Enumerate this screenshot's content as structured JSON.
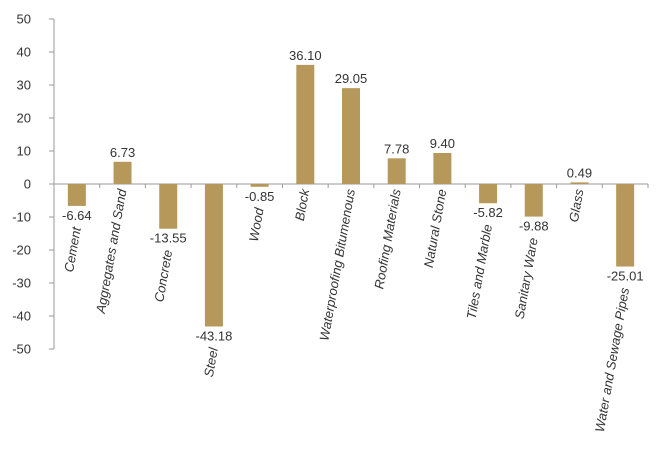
{
  "chart_data": {
    "type": "bar",
    "title": "",
    "xlabel": "",
    "ylabel": "",
    "ylim": [
      -50,
      50
    ],
    "yticks": [
      50,
      40,
      30,
      20,
      10,
      0,
      -10,
      -20,
      -30,
      -40,
      -50
    ],
    "grid": false,
    "bar_color": "#b5985a",
    "categories": [
      "Cement",
      "Aggregates  and Sand",
      "Concrete",
      "Steel",
      "Wood",
      "Block",
      "Waterproofing Bitumenous",
      "Roofing Materials",
      "Natural Stone",
      "Tiles and Marble",
      "Sanitary Ware",
      "Glass",
      "Water and Sewage Pipes"
    ],
    "values": [
      -6.64,
      6.73,
      -13.55,
      -43.18,
      -0.85,
      36.1,
      29.05,
      7.78,
      9.4,
      -5.82,
      -9.88,
      0.49,
      -25.01
    ],
    "value_labels": [
      "-6.64",
      "6.73",
      "-13.55",
      "-43.18",
      "-0.85",
      "36.10",
      "29.05",
      "7.78",
      "9.40",
      "-5.82",
      "-9.88",
      "0.49",
      "-25.01"
    ]
  }
}
